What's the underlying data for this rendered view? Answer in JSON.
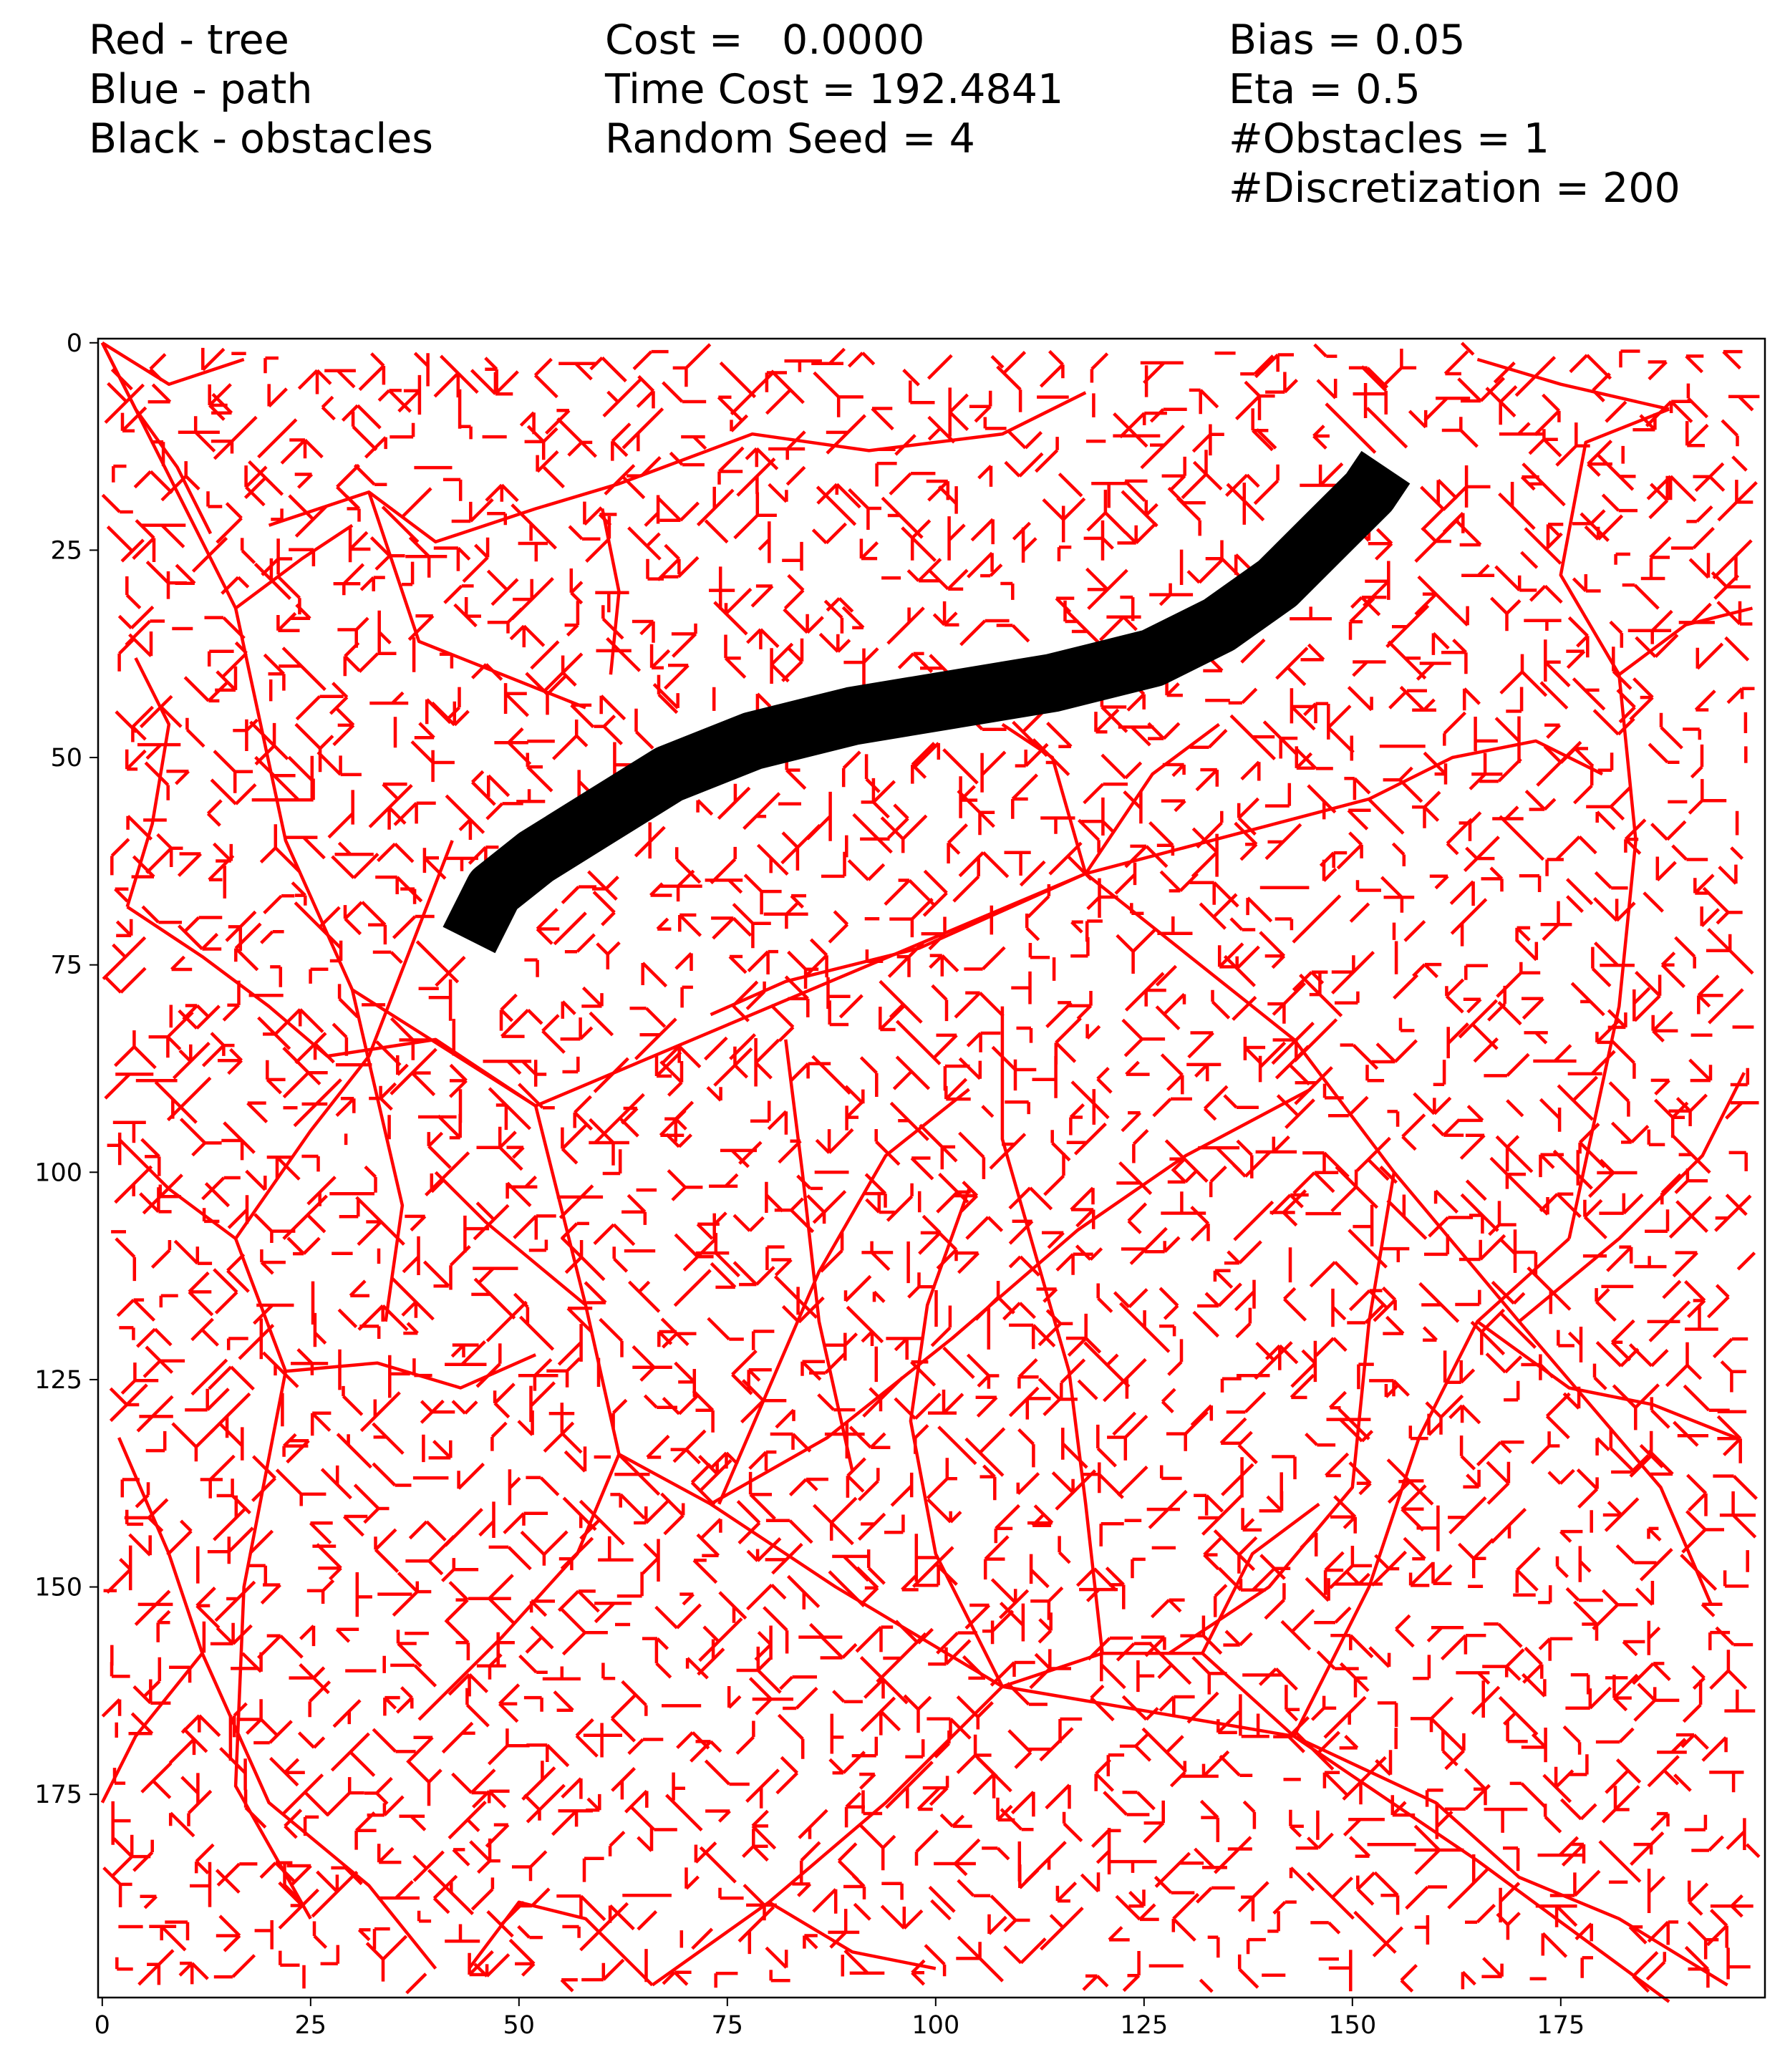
{
  "header": {
    "legend": [
      "Red - tree",
      "Blue - path",
      "Black - obstacles"
    ],
    "stats": [
      "Cost =   0.0000",
      "Time Cost = 192.4841",
      "Random Seed = 4"
    ],
    "params": [
      "Bias = 0.05",
      "Eta = 0.5",
      "#Obstacles = 1",
      "#Discretization = 200"
    ]
  },
  "chart_data": {
    "type": "image",
    "xlim": [
      -0.5,
      199.5
    ],
    "ylim": [
      199.5,
      -0.5
    ],
    "xticks": [
      0,
      25,
      50,
      75,
      100,
      125,
      150,
      175
    ],
    "yticks": [
      0,
      25,
      50,
      75,
      100,
      125,
      150,
      175
    ],
    "colors": {
      "tree": "#ff0000",
      "path": "#0000ff",
      "obstacles": "#000000"
    },
    "tree_trunks": [
      [
        [
          0,
          0
        ],
        [
          16,
          32
        ],
        [
          22,
          60
        ],
        [
          30,
          78
        ],
        [
          52,
          92
        ],
        [
          58,
          116
        ],
        [
          62,
          134
        ],
        [
          73,
          140
        ],
        [
          88,
          150
        ],
        [
          108,
          162
        ],
        [
          143,
          168
        ],
        [
          165,
          183
        ],
        [
          188,
          200
        ]
      ],
      [
        [
          0,
          0
        ],
        [
          4,
          8
        ],
        [
          9,
          15
        ],
        [
          13,
          23
        ]
      ],
      [
        [
          52,
          92
        ],
        [
          40,
          84
        ],
        [
          27,
          86
        ],
        [
          20,
          80
        ],
        [
          12,
          74
        ],
        [
          3,
          68
        ]
      ],
      [
        [
          52,
          92
        ],
        [
          118,
          64
        ],
        [
          152,
          55
        ]
      ],
      [
        [
          118,
          64
        ],
        [
          98,
          73
        ],
        [
          82,
          77
        ],
        [
          73,
          81
        ]
      ],
      [
        [
          118,
          64
        ],
        [
          143,
          84
        ],
        [
          155,
          100
        ],
        [
          170,
          118
        ],
        [
          187,
          138
        ],
        [
          193,
          152
        ]
      ],
      [
        [
          16,
          108
        ],
        [
          25,
          95
        ],
        [
          32,
          86
        ],
        [
          37,
          73
        ],
        [
          42,
          60
        ]
      ],
      [
        [
          16,
          108
        ],
        [
          22,
          124
        ],
        [
          17,
          150
        ],
        [
          16,
          174
        ],
        [
          25,
          190
        ]
      ],
      [
        [
          16,
          108
        ],
        [
          8,
          102
        ],
        [
          2,
          96
        ]
      ],
      [
        [
          22,
          124
        ],
        [
          33,
          123
        ],
        [
          43,
          126
        ],
        [
          52,
          122
        ]
      ],
      [
        [
          62,
          134
        ],
        [
          57,
          146
        ],
        [
          48,
          156
        ],
        [
          38,
          166
        ]
      ],
      [
        [
          73,
          140
        ],
        [
          87,
          132
        ],
        [
          102,
          120
        ],
        [
          117,
          107
        ],
        [
          130,
          98
        ],
        [
          145,
          90
        ]
      ],
      [
        [
          108,
          162
        ],
        [
          120,
          158
        ],
        [
          132,
          158
        ],
        [
          143,
          168
        ]
      ],
      [
        [
          108,
          162
        ],
        [
          94,
          176
        ],
        [
          80,
          188
        ],
        [
          66,
          198
        ]
      ],
      [
        [
          143,
          168
        ],
        [
          152,
          150
        ],
        [
          158,
          132
        ],
        [
          165,
          118
        ],
        [
          176,
          108
        ]
      ],
      [
        [
          176,
          108
        ],
        [
          182,
          80
        ],
        [
          184,
          60
        ],
        [
          182,
          40
        ],
        [
          175,
          28
        ],
        [
          178,
          12
        ],
        [
          188,
          8
        ]
      ],
      [
        [
          188,
          8
        ],
        [
          175,
          5
        ],
        [
          165,
          2
        ]
      ],
      [
        [
          155,
          100
        ],
        [
          152,
          118
        ],
        [
          150,
          138
        ],
        [
          140,
          150
        ],
        [
          128,
          158
        ]
      ],
      [
        [
          0,
          0
        ],
        [
          8,
          5
        ],
        [
          17,
          2
        ]
      ],
      [
        [
          20,
          22
        ],
        [
          32,
          18
        ],
        [
          40,
          24
        ],
        [
          52,
          20
        ],
        [
          62,
          17
        ],
        [
          78,
          11
        ],
        [
          92,
          13
        ],
        [
          108,
          11
        ],
        [
          118,
          6
        ]
      ],
      [
        [
          32,
          18
        ],
        [
          38,
          36
        ],
        [
          48,
          40
        ],
        [
          58,
          44
        ]
      ],
      [
        [
          60,
          20
        ],
        [
          62,
          30
        ],
        [
          61,
          40
        ]
      ],
      [
        [
          16,
          32
        ],
        [
          24,
          26
        ],
        [
          30,
          22
        ]
      ],
      [
        [
          2,
          132
        ],
        [
          8,
          146
        ],
        [
          12,
          158
        ],
        [
          4,
          168
        ],
        [
          0,
          176
        ]
      ],
      [
        [
          12,
          158
        ],
        [
          20,
          176
        ],
        [
          32,
          186
        ],
        [
          40,
          196
        ]
      ],
      [
        [
          74,
          140
        ],
        [
          80,
          126
        ],
        [
          86,
          112
        ],
        [
          94,
          98
        ],
        [
          104,
          90
        ]
      ],
      [
        [
          90,
          136
        ],
        [
          86,
          118
        ],
        [
          84,
          100
        ],
        [
          82,
          84
        ]
      ],
      [
        [
          108,
          162
        ],
        [
          100,
          146
        ],
        [
          97,
          130
        ],
        [
          99,
          116
        ],
        [
          104,
          102
        ]
      ],
      [
        [
          120,
          158
        ],
        [
          118,
          140
        ],
        [
          116,
          124
        ],
        [
          112,
          110
        ],
        [
          108,
          96
        ],
        [
          108,
          80
        ]
      ],
      [
        [
          143,
          168
        ],
        [
          160,
          176
        ],
        [
          170,
          185
        ],
        [
          182,
          190
        ],
        [
          195,
          198
        ]
      ],
      [
        [
          165,
          118
        ],
        [
          176,
          126
        ],
        [
          186,
          128
        ],
        [
          196,
          132
        ]
      ],
      [
        [
          170,
          118
        ],
        [
          182,
          108
        ],
        [
          192,
          98
        ],
        [
          197,
          88
        ]
      ],
      [
        [
          182,
          40
        ],
        [
          190,
          34
        ],
        [
          198,
          32
        ]
      ],
      [
        [
          152,
          55
        ],
        [
          162,
          50
        ],
        [
          172,
          48
        ],
        [
          180,
          52
        ]
      ],
      [
        [
          66,
          198
        ],
        [
          58,
          190
        ],
        [
          50,
          188
        ],
        [
          44,
          196
        ]
      ],
      [
        [
          80,
          188
        ],
        [
          90,
          194
        ],
        [
          100,
          196
        ]
      ],
      [
        [
          132,
          158
        ],
        [
          138,
          146
        ],
        [
          146,
          140
        ]
      ],
      [
        [
          118,
          64
        ],
        [
          114,
          50
        ],
        [
          108,
          46
        ]
      ],
      [
        [
          118,
          64
        ],
        [
          126,
          52
        ],
        [
          134,
          46
        ]
      ],
      [
        [
          30,
          78
        ],
        [
          36,
          104
        ],
        [
          34,
          118
        ]
      ],
      [
        [
          58,
          116
        ],
        [
          46,
          106
        ],
        [
          40,
          100
        ]
      ],
      [
        [
          3,
          68
        ],
        [
          6,
          58
        ],
        [
          8,
          46
        ],
        [
          4,
          38
        ]
      ]
    ],
    "obstacle_centerline": [
      [
        44,
        72
      ],
      [
        47,
        66
      ],
      [
        52,
        62
      ],
      [
        60,
        57
      ],
      [
        68,
        52
      ],
      [
        78,
        48
      ],
      [
        90,
        45
      ],
      [
        102,
        43
      ],
      [
        114,
        41
      ],
      [
        126,
        38
      ],
      [
        134,
        34
      ],
      [
        141,
        29
      ],
      [
        147,
        23
      ],
      [
        152,
        18
      ],
      [
        154,
        15
      ]
    ],
    "obstacle_half_width": 2.6
  }
}
